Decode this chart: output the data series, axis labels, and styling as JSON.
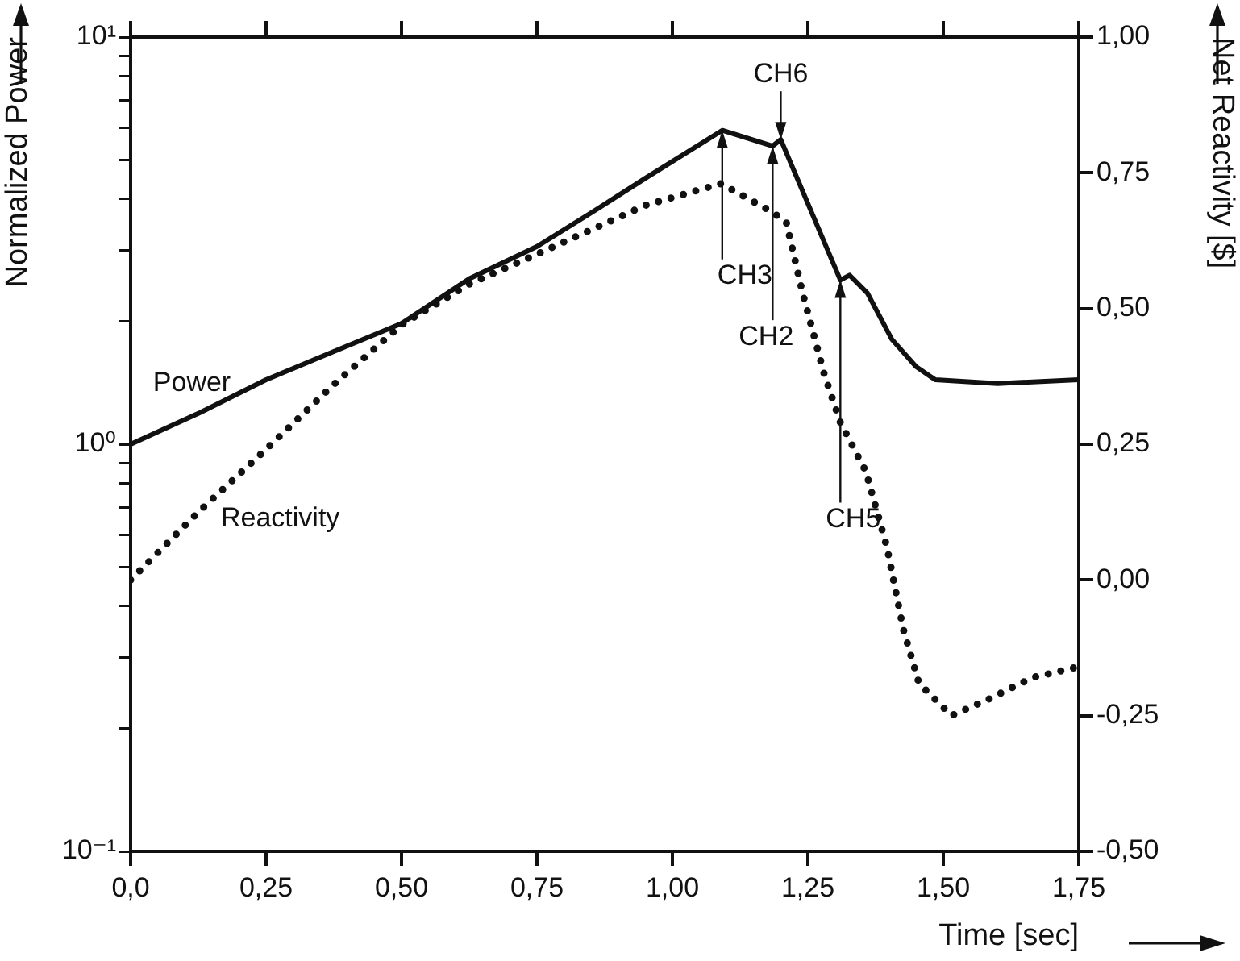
{
  "chart_data": {
    "type": "line",
    "xlabel": "Time [sec]",
    "ylabel": "Normalized Power",
    "y2label": "Net Reactivity [$]",
    "xlim": [
      0,
      1.75
    ],
    "xticks": [
      {
        "value": 0,
        "label": "0,0"
      },
      {
        "value": 0.25,
        "label": "0,25"
      },
      {
        "value": 0.5,
        "label": "0,50"
      },
      {
        "value": 0.75,
        "label": "0,75"
      },
      {
        "value": 1,
        "label": "1,00"
      },
      {
        "value": 1.25,
        "label": "1,25"
      },
      {
        "value": 1.5,
        "label": "1,50"
      },
      {
        "value": 1.75,
        "label": "1,75"
      }
    ],
    "log": "y",
    "ylim": [
      0.1,
      10
    ],
    "yticks": [
      {
        "value": 0.1,
        "label": "10⁻¹"
      },
      {
        "value": 0.2,
        "label": null
      },
      {
        "value": 0.3,
        "label": null
      },
      {
        "value": 0.4,
        "label": null
      },
      {
        "value": 0.5,
        "label": null
      },
      {
        "value": 0.6,
        "label": null
      },
      {
        "value": 0.7,
        "label": null
      },
      {
        "value": 0.8,
        "label": null
      },
      {
        "value": 0.9,
        "label": null
      },
      {
        "value": 1,
        "label": "10⁰"
      },
      {
        "value": 2,
        "label": null
      },
      {
        "value": 3,
        "label": null
      },
      {
        "value": 4,
        "label": null
      },
      {
        "value": 5,
        "label": null
      },
      {
        "value": 6,
        "label": null
      },
      {
        "value": 7,
        "label": null
      },
      {
        "value": 8,
        "label": null
      },
      {
        "value": 9,
        "label": null
      },
      {
        "value": 10,
        "label": "10¹"
      }
    ],
    "y2lim": [
      -0.5,
      1.0
    ],
    "y2ticks": [
      {
        "value": -0.5,
        "label": "-0,50"
      },
      {
        "value": -0.25,
        "label": "-0,25"
      },
      {
        "value": 0,
        "label": "0,00"
      },
      {
        "value": 0.25,
        "label": "0,25"
      },
      {
        "value": 0.5,
        "label": "0,50"
      },
      {
        "value": 0.75,
        "label": "0,75"
      },
      {
        "value": 1,
        "label": "1,00"
      }
    ],
    "grid": false,
    "legend": false,
    "series": [
      {
        "name": "Power",
        "color": "#111111",
        "line_style": "solid",
        "x": [
          0,
          0.125,
          0.25,
          0.375,
          0.5,
          0.625,
          0.75,
          0.85,
          0.95,
          1.092,
          1.185,
          1.2,
          1.31,
          1.327,
          1.36,
          1.405,
          1.45,
          1.485,
          1.6,
          1.75
        ],
        "values": [
          1.0,
          1.19,
          1.44,
          1.69,
          1.98,
          2.55,
          3.06,
          3.7,
          4.5,
          5.9,
          5.4,
          5.6,
          2.53,
          2.6,
          2.35,
          1.81,
          1.55,
          1.44,
          1.41,
          1.44
        ]
      },
      {
        "name": "Reactivity",
        "color": "#111111",
        "line_style": "dotted",
        "axis": "y2",
        "x": [
          0,
          0.125,
          0.244,
          0.375,
          0.5,
          0.625,
          0.75,
          0.95,
          1.09,
          1.18,
          1.21,
          1.24,
          1.28,
          1.31,
          1.357,
          1.396,
          1.426,
          1.455,
          1.515,
          1.583,
          1.664,
          1.75
        ],
        "values": [
          0.0,
          0.125,
          0.235,
          0.36,
          0.47,
          0.545,
          0.6,
          0.69,
          0.73,
          0.68,
          0.66,
          0.53,
          0.38,
          0.29,
          0.2,
          0.06,
          -0.09,
          -0.19,
          -0.25,
          -0.22,
          -0.18,
          -0.16
        ]
      }
    ],
    "annotations": [
      {
        "text": "CH3",
        "x": 1.092,
        "y": 5.9
      },
      {
        "text": "CH2",
        "x": 1.185,
        "y": 5.4
      },
      {
        "text": "CH6",
        "x": 1.2,
        "y": 5.6
      },
      {
        "text": "CH5",
        "x": 1.31,
        "y": 2.53
      }
    ]
  }
}
